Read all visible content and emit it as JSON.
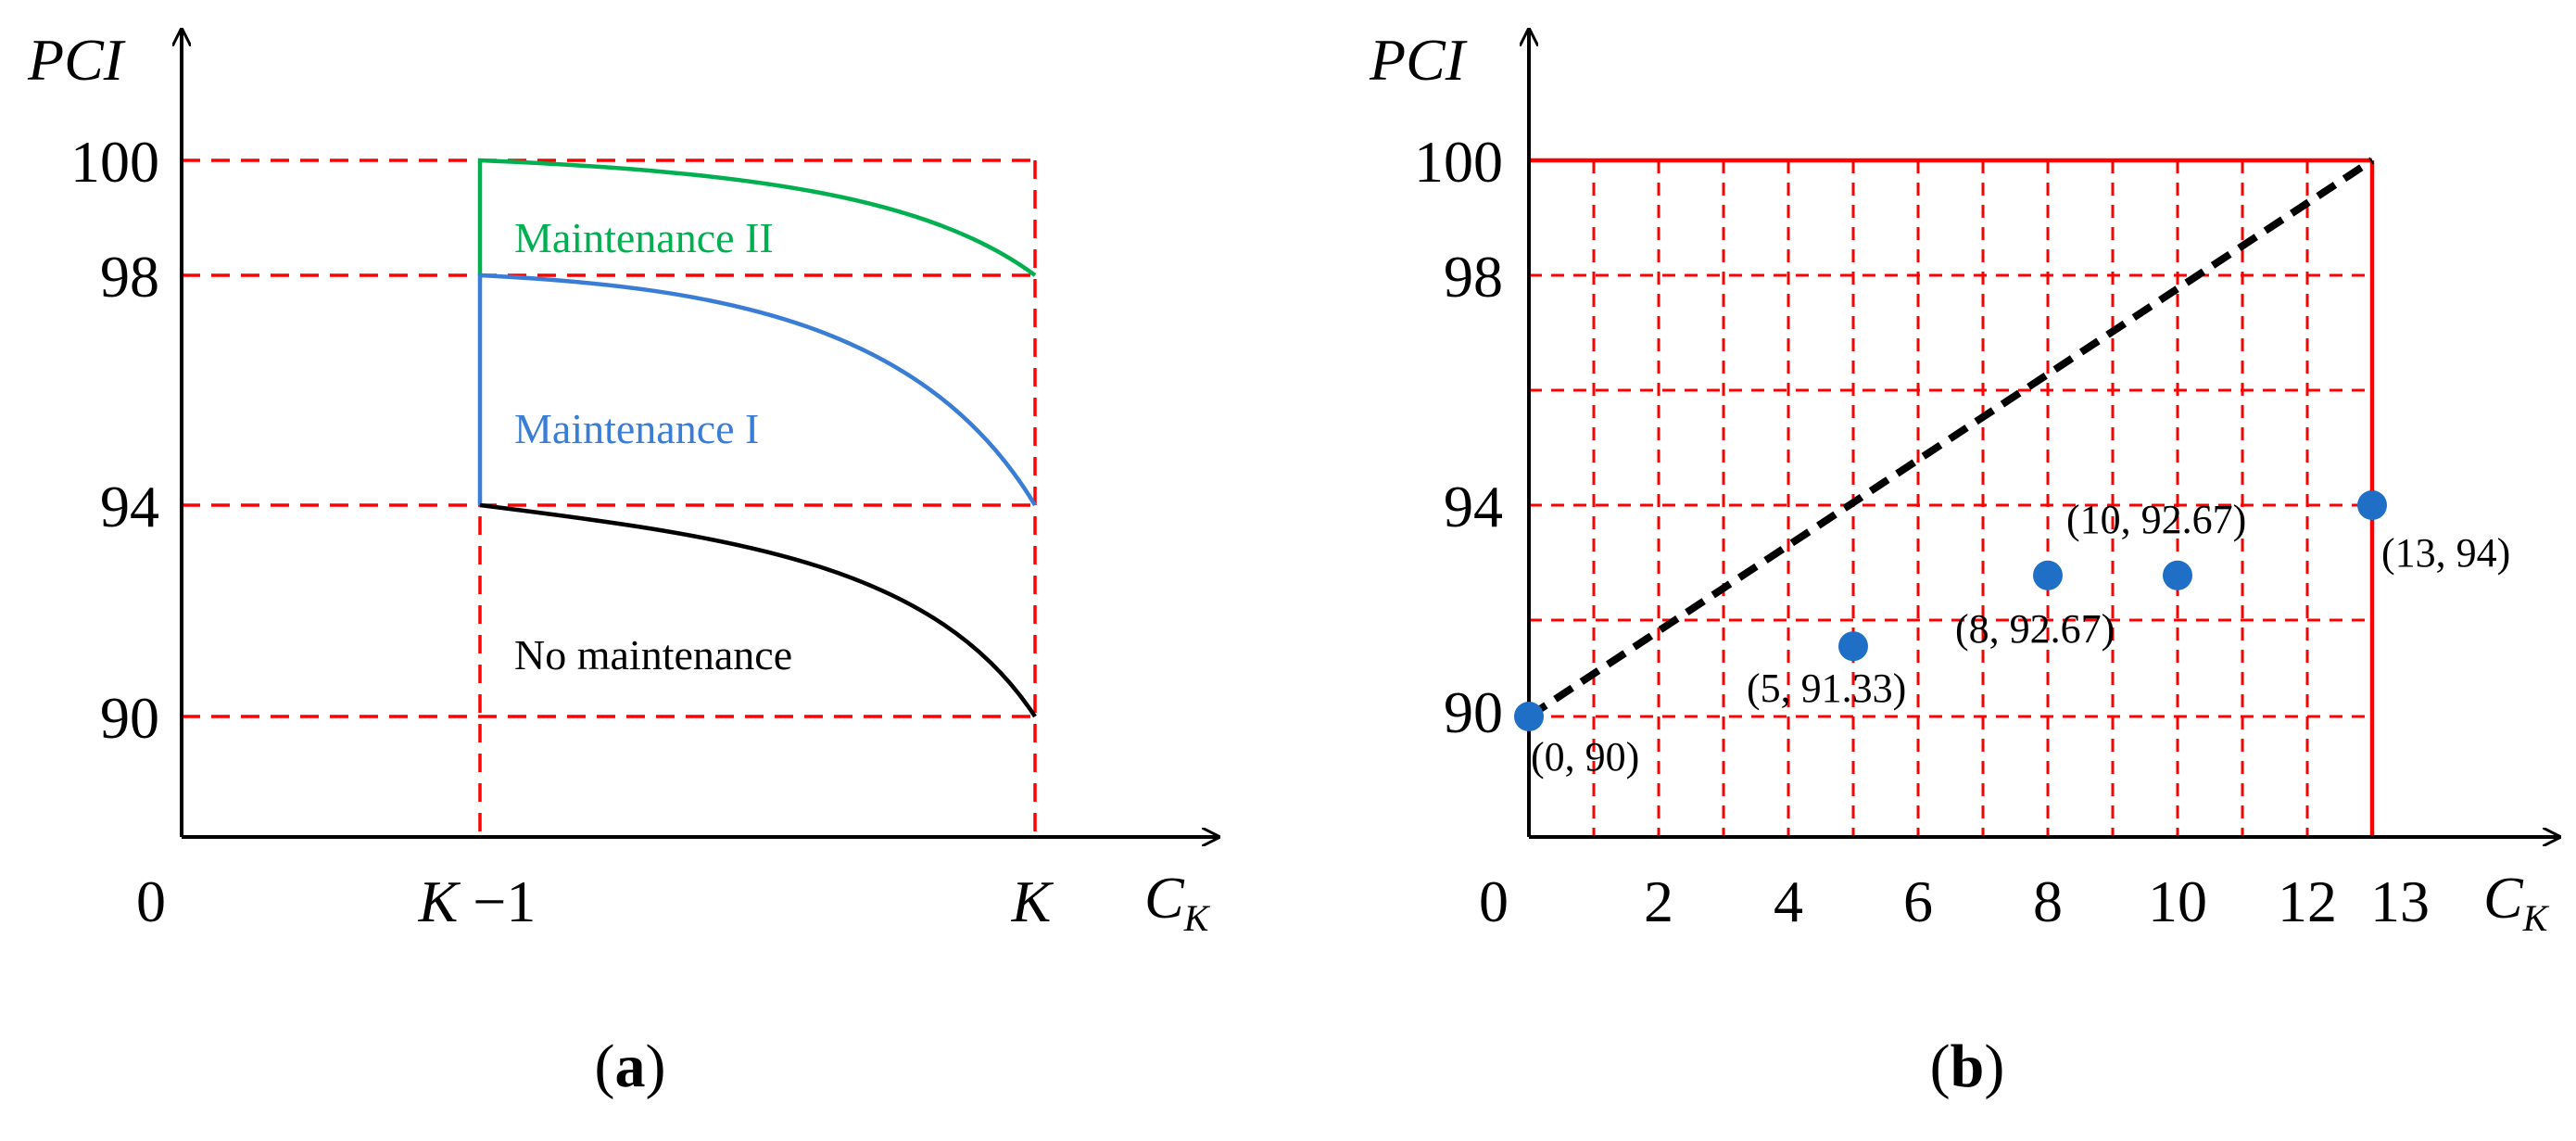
{
  "chart_data": [
    {
      "panel": "a",
      "type": "line",
      "panel_label": {
        "open": "(",
        "letter": "a",
        "close": ")"
      },
      "ylabel": "PCI",
      "xlabel": {
        "main": "C",
        "sub": "K"
      },
      "origin_label": "0",
      "y_ticks": [
        "100",
        "98",
        "94",
        "90"
      ],
      "x_ticks": [
        {
          "k": "K",
          "rest": " −1"
        },
        {
          "k": "K",
          "rest": ""
        }
      ],
      "series": [
        {
          "name": "Maintenance II",
          "color": "#00b050",
          "start_pci": 100,
          "end_pci": 98
        },
        {
          "name": "Maintenance I",
          "color": "#3a7dd6",
          "start_pci": 98,
          "end_pci": 94
        },
        {
          "name": "No maintenance",
          "color": "#000000",
          "start_pci": 94,
          "end_pci": 90
        }
      ],
      "grid_color": "#ff0000"
    },
    {
      "panel": "b",
      "type": "scatter",
      "panel_label": {
        "open": "(",
        "letter": "b",
        "close": ")"
      },
      "ylabel": "PCI",
      "xlabel": {
        "main": "C",
        "sub": "K"
      },
      "x_ticks": [
        0,
        2,
        4,
        6,
        8,
        10,
        12,
        13
      ],
      "y_ticks": [
        100,
        98,
        94,
        90
      ],
      "points": [
        {
          "x": 0,
          "y": 90,
          "label": "(0, 90)"
        },
        {
          "x": 5,
          "y": 91.33,
          "label": "(5, 91.33)"
        },
        {
          "x": 8,
          "y": 92.67,
          "label": "(8, 92.67)"
        },
        {
          "x": 10,
          "y": 92.67,
          "label": "(10, 92.67)"
        },
        {
          "x": 13,
          "y": 94,
          "label": "(13, 94)"
        }
      ],
      "trend_line": {
        "from": [
          0,
          90
        ],
        "to": [
          13,
          100
        ],
        "style": "dashed",
        "color": "#000000"
      },
      "point_color": "#1f6fc6",
      "grid_color": "#ff0000"
    }
  ]
}
